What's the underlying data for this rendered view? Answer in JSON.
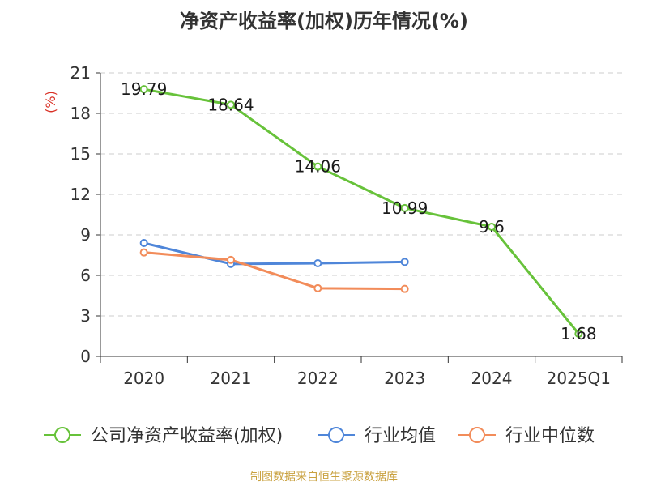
{
  "chart_data": {
    "type": "line",
    "title": "净资产收益率(加权)历年情况(%)",
    "ylabel": "(%)",
    "categories": [
      "2020",
      "2021",
      "2022",
      "2023",
      "2024",
      "2025Q1"
    ],
    "ylim": [
      0,
      21
    ],
    "yticks": [
      0,
      3,
      6,
      9,
      12,
      15,
      18,
      21
    ],
    "grid": true,
    "legend_position": "bottom",
    "series": [
      {
        "name": "公司净资产收益率(加权)",
        "color": "#67c23a",
        "values": [
          19.79,
          18.64,
          14.06,
          10.99,
          9.6,
          1.68
        ],
        "labels": [
          "19.79",
          "18.64",
          "14.06",
          "10.99",
          "9.6",
          "1.68"
        ]
      },
      {
        "name": "行业均值",
        "color": "#4f86d9",
        "values": [
          8.4,
          6.85,
          6.9,
          7.0,
          null,
          null
        ]
      },
      {
        "name": "行业中位数",
        "color": "#f28c5a",
        "values": [
          7.7,
          7.15,
          5.05,
          5.0,
          null,
          null
        ]
      }
    ],
    "source": "制图数据来自恒生聚源数据库",
    "source_color": "#c9a13f",
    "ylabel_color": "#d93025"
  }
}
